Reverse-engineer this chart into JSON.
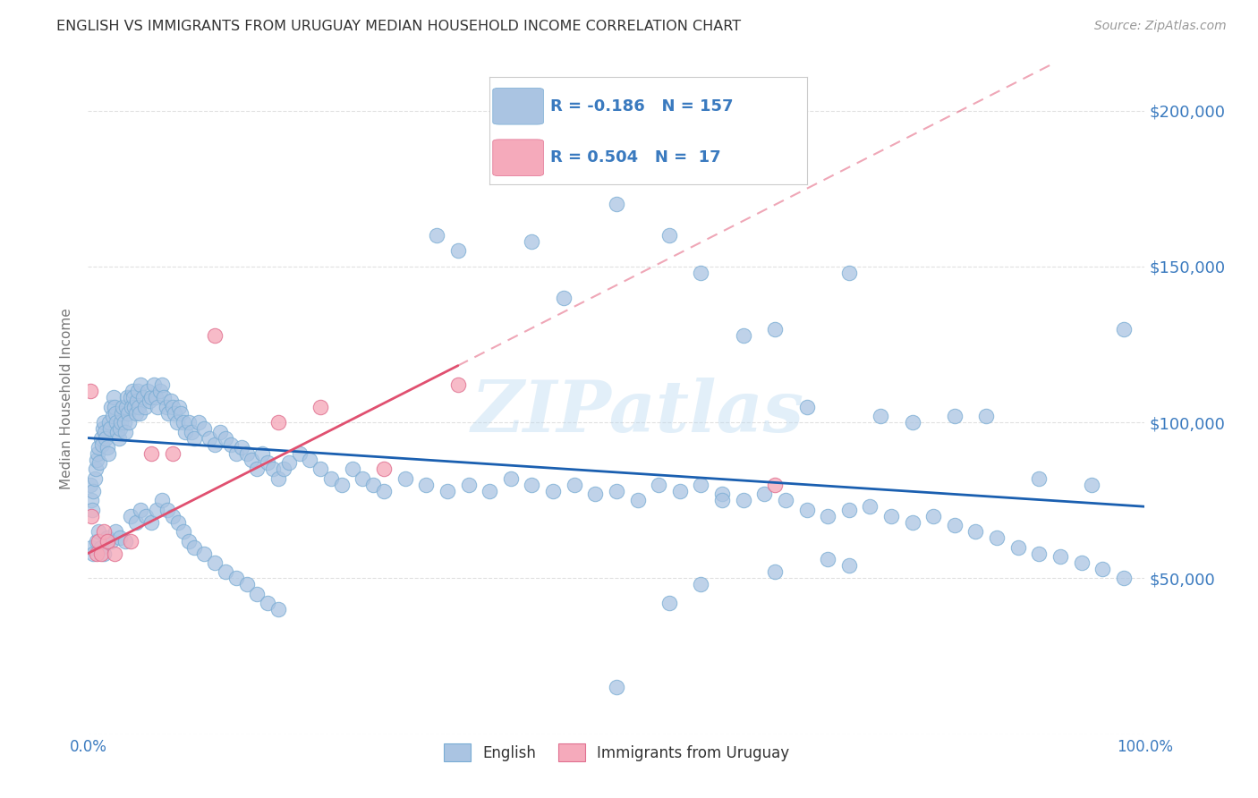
{
  "title": "ENGLISH VS IMMIGRANTS FROM URUGUAY MEDIAN HOUSEHOLD INCOME CORRELATION CHART",
  "source": "Source: ZipAtlas.com",
  "ylabel": "Median Household Income",
  "watermark": "ZIPatlas",
  "legend_english_label": "English",
  "legend_uruguay_label": "Immigrants from Uruguay",
  "r_english": "-0.186",
  "n_english": "157",
  "r_uruguay": "0.504",
  "n_uruguay": " 17",
  "xlim": [
    0,
    1.0
  ],
  "ylim": [
    0,
    215000
  ],
  "yticks": [
    0,
    50000,
    100000,
    150000,
    200000
  ],
  "ytick_labels": [
    "",
    "$50,000",
    "$100,000",
    "$150,000",
    "$200,000"
  ],
  "english_color": "#aac4e2",
  "english_edge_color": "#7aadd4",
  "english_line_color": "#1a5fb0",
  "uruguay_color": "#f5aabb",
  "uruguay_edge_color": "#e07090",
  "uruguay_line_color": "#e05070",
  "background_color": "#ffffff",
  "title_color": "#333333",
  "axis_color": "#3a7abf",
  "grid_color": "#cccccc",
  "english_x": [
    0.002,
    0.003,
    0.004,
    0.005,
    0.006,
    0.007,
    0.008,
    0.009,
    0.01,
    0.011,
    0.012,
    0.013,
    0.014,
    0.015,
    0.016,
    0.017,
    0.018,
    0.019,
    0.02,
    0.021,
    0.022,
    0.023,
    0.024,
    0.025,
    0.026,
    0.027,
    0.028,
    0.029,
    0.03,
    0.031,
    0.032,
    0.033,
    0.034,
    0.035,
    0.036,
    0.037,
    0.038,
    0.039,
    0.04,
    0.041,
    0.042,
    0.043,
    0.044,
    0.045,
    0.046,
    0.047,
    0.048,
    0.049,
    0.05,
    0.052,
    0.054,
    0.056,
    0.058,
    0.06,
    0.062,
    0.064,
    0.066,
    0.068,
    0.07,
    0.072,
    0.074,
    0.076,
    0.078,
    0.08,
    0.082,
    0.084,
    0.086,
    0.088,
    0.09,
    0.092,
    0.095,
    0.098,
    0.1,
    0.105,
    0.11,
    0.115,
    0.12,
    0.125,
    0.13,
    0.135,
    0.14,
    0.145,
    0.15,
    0.155,
    0.16,
    0.165,
    0.17,
    0.175,
    0.18,
    0.185,
    0.19,
    0.2,
    0.21,
    0.22,
    0.23,
    0.24,
    0.25,
    0.26,
    0.27,
    0.28,
    0.3,
    0.32,
    0.34,
    0.36,
    0.38,
    0.4,
    0.42,
    0.44,
    0.46,
    0.48,
    0.5,
    0.52,
    0.54,
    0.56,
    0.58,
    0.6,
    0.62,
    0.64,
    0.66,
    0.68,
    0.7,
    0.72,
    0.74,
    0.76,
    0.78,
    0.8,
    0.82,
    0.84,
    0.86,
    0.88,
    0.9,
    0.92,
    0.94,
    0.96,
    0.98,
    0.003,
    0.005,
    0.008,
    0.01,
    0.012,
    0.015,
    0.018,
    0.022,
    0.026,
    0.03,
    0.035,
    0.04,
    0.045,
    0.05,
    0.055,
    0.06,
    0.065,
    0.07,
    0.075,
    0.08,
    0.085,
    0.09,
    0.095,
    0.1,
    0.11,
    0.12,
    0.13,
    0.14,
    0.15,
    0.16,
    0.17,
    0.18
  ],
  "english_y": [
    80000,
    75000,
    72000,
    78000,
    82000,
    85000,
    88000,
    90000,
    92000,
    87000,
    95000,
    93000,
    98000,
    100000,
    97000,
    95000,
    92000,
    90000,
    100000,
    98000,
    105000,
    102000,
    108000,
    105000,
    103000,
    100000,
    97000,
    95000,
    98000,
    100000,
    103000,
    105000,
    100000,
    97000,
    105000,
    108000,
    103000,
    100000,
    108000,
    105000,
    110000,
    108000,
    105000,
    103000,
    107000,
    110000,
    105000,
    103000,
    112000,
    108000,
    105000,
    110000,
    107000,
    108000,
    112000,
    108000,
    105000,
    110000,
    112000,
    108000,
    105000,
    103000,
    107000,
    105000,
    103000,
    100000,
    105000,
    103000,
    100000,
    97000,
    100000,
    97000,
    95000,
    100000,
    98000,
    95000,
    93000,
    97000,
    95000,
    93000,
    90000,
    92000,
    90000,
    88000,
    85000,
    90000,
    87000,
    85000,
    82000,
    85000,
    87000,
    90000,
    88000,
    85000,
    82000,
    80000,
    85000,
    82000,
    80000,
    78000,
    82000,
    80000,
    78000,
    80000,
    78000,
    82000,
    80000,
    78000,
    80000,
    77000,
    78000,
    75000,
    80000,
    78000,
    80000,
    77000,
    75000,
    77000,
    75000,
    72000,
    70000,
    72000,
    73000,
    70000,
    68000,
    70000,
    67000,
    65000,
    63000,
    60000,
    58000,
    57000,
    55000,
    53000,
    50000,
    60000,
    58000,
    62000,
    65000,
    60000,
    58000,
    63000,
    62000,
    65000,
    63000,
    62000,
    70000,
    68000,
    72000,
    70000,
    68000,
    72000,
    75000,
    72000,
    70000,
    68000,
    65000,
    62000,
    60000,
    58000,
    55000,
    52000,
    50000,
    48000,
    45000,
    42000,
    40000
  ],
  "english_special_x": [
    0.33,
    0.35,
    0.42,
    0.45,
    0.5,
    0.55,
    0.58,
    0.62,
    0.65,
    0.68,
    0.72,
    0.75,
    0.78,
    0.82,
    0.85,
    0.9,
    0.95,
    0.98,
    0.72,
    0.58,
    0.5,
    0.55,
    0.6,
    0.65,
    0.7
  ],
  "english_special_y": [
    160000,
    155000,
    158000,
    140000,
    170000,
    160000,
    148000,
    128000,
    130000,
    105000,
    148000,
    102000,
    100000,
    102000,
    102000,
    82000,
    80000,
    130000,
    54000,
    48000,
    15000,
    42000,
    75000,
    52000,
    56000
  ],
  "uruguay_x": [
    0.002,
    0.003,
    0.008,
    0.01,
    0.012,
    0.015,
    0.018,
    0.025,
    0.04,
    0.06,
    0.08,
    0.12,
    0.18,
    0.22,
    0.28,
    0.35,
    0.65
  ],
  "uruguay_y": [
    110000,
    70000,
    58000,
    62000,
    58000,
    65000,
    62000,
    58000,
    62000,
    90000,
    90000,
    128000,
    100000,
    105000,
    85000,
    112000,
    80000
  ],
  "english_trendline": [
    0.0,
    1.0,
    95000,
    73000
  ],
  "uruguay_trendline": [
    0.0,
    1.0,
    58000,
    230000
  ]
}
